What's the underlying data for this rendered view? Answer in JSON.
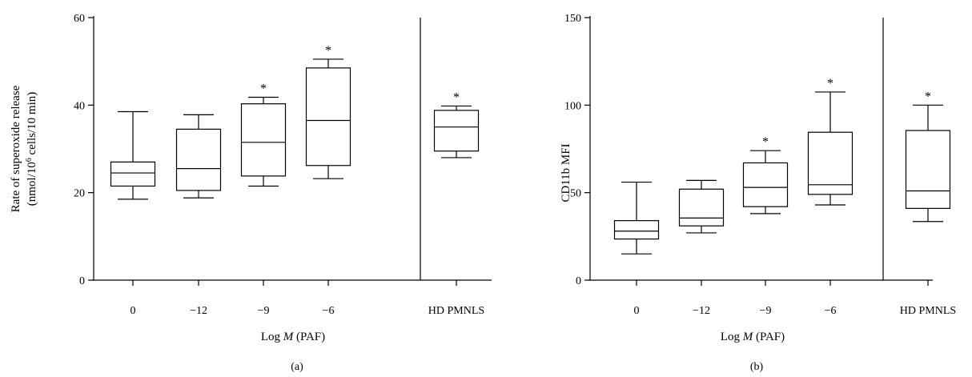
{
  "chart_data": [
    {
      "type": "box",
      "panel_label": "(a)",
      "ylabel_line1": "Rate of superoxide release",
      "ylabel_line2_pre": "(nmol/10",
      "ylabel_line2_sup": "6",
      "ylabel_line2_post": " cells/10 min)",
      "xlabel_pre": "Log ",
      "xlabel_italic": "M",
      "xlabel_post": " (PAF)",
      "ylim": [
        0,
        60
      ],
      "yticks": [
        "0",
        "20",
        "40",
        "60"
      ],
      "ytick_values": [
        0,
        20,
        40,
        60
      ],
      "separator_after_index": 3,
      "categories": [
        "0",
        "−12",
        "−9",
        "−6",
        "HD PMNLS"
      ],
      "boxes": [
        {
          "min": 18.5,
          "q1": 21.5,
          "median": 24.5,
          "q3": 27.0,
          "max": 38.5,
          "star": ""
        },
        {
          "min": 18.8,
          "q1": 20.5,
          "median": 25.5,
          "q3": 34.5,
          "max": 37.8,
          "star": ""
        },
        {
          "min": 21.5,
          "q1": 23.8,
          "median": 31.5,
          "q3": 40.3,
          "max": 41.8,
          "star": "*"
        },
        {
          "min": 23.2,
          "q1": 26.2,
          "median": 36.5,
          "q3": 48.5,
          "max": 50.5,
          "star": "*"
        },
        {
          "min": 28.0,
          "q1": 29.5,
          "median": 35.0,
          "q3": 38.8,
          "max": 39.8,
          "star": "*"
        }
      ]
    },
    {
      "type": "box",
      "panel_label": "(b)",
      "ylabel": "CD11b MFI",
      "xlabel_pre": "Log ",
      "xlabel_italic": "M",
      "xlabel_post": " (PAF)",
      "ylim": [
        0,
        150
      ],
      "yticks": [
        "0",
        "50",
        "100",
        "150"
      ],
      "ytick_values": [
        0,
        50,
        100,
        150
      ],
      "separator_after_index": 3,
      "categories": [
        "0",
        "−12",
        "−9",
        "−6",
        "HD PMNLS"
      ],
      "boxes": [
        {
          "min": 15.0,
          "q1": 23.5,
          "median": 28.0,
          "q3": 34.0,
          "max": 56.0,
          "star": ""
        },
        {
          "min": 27.0,
          "q1": 31.0,
          "median": 35.5,
          "q3": 52.0,
          "max": 57.0,
          "star": ""
        },
        {
          "min": 38.0,
          "q1": 42.0,
          "median": 53.0,
          "q3": 67.0,
          "max": 74.0,
          "star": "*"
        },
        {
          "min": 43.0,
          "q1": 49.0,
          "median": 54.5,
          "q3": 84.5,
          "max": 107.5,
          "star": "*"
        },
        {
          "min": 33.5,
          "q1": 41.0,
          "median": 51.0,
          "q3": 85.5,
          "max": 100.0,
          "star": "*"
        }
      ]
    }
  ]
}
